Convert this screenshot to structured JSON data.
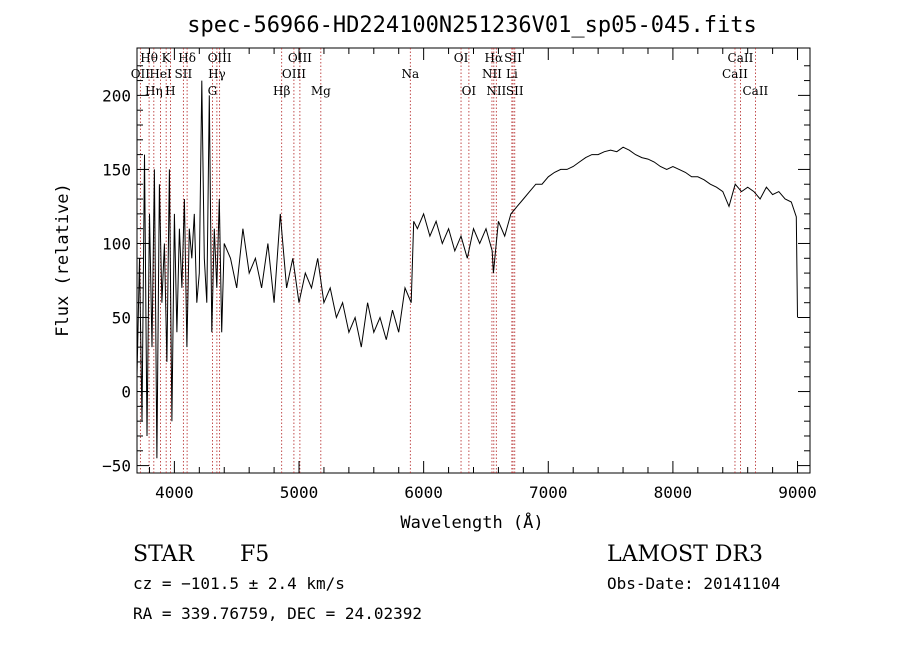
{
  "colors": {
    "spectrum": "#000000",
    "line_markers": "#b22222",
    "axes": "#000000",
    "background": "#ffffff"
  },
  "chart_data": {
    "type": "line",
    "title": "spec-56966-HD224100N251236V01_sp05-045.fits",
    "xlabel": "Wavelength (Å)",
    "ylabel": "Flux (relative)",
    "xlim": [
      3700,
      9100
    ],
    "ylim": [
      -55,
      232
    ],
    "x_ticks": [
      4000,
      5000,
      6000,
      7000,
      8000,
      9000
    ],
    "y_ticks": [
      -50,
      0,
      50,
      100,
      150,
      200
    ],
    "series": [
      {
        "values_description_free": true,
        "x": [
          3700,
          3720,
          3740,
          3760,
          3780,
          3800,
          3820,
          3840,
          3860,
          3880,
          3900,
          3920,
          3940,
          3960,
          3980,
          4000,
          4020,
          4040,
          4060,
          4080,
          4100,
          4120,
          4140,
          4160,
          4180,
          4200,
          4220,
          4240,
          4260,
          4280,
          4300,
          4320,
          4340,
          4360,
          4380,
          4400,
          4450,
          4500,
          4550,
          4600,
          4650,
          4700,
          4750,
          4800,
          4850,
          4900,
          4950,
          5000,
          5050,
          5100,
          5150,
          5200,
          5250,
          5300,
          5350,
          5400,
          5450,
          5500,
          5550,
          5600,
          5650,
          5700,
          5750,
          5800,
          5850,
          5900,
          5920,
          5950,
          6000,
          6050,
          6100,
          6150,
          6200,
          6250,
          6300,
          6350,
          6400,
          6450,
          6500,
          6550,
          6560,
          6600,
          6650,
          6700,
          6750,
          6800,
          6850,
          6900,
          6950,
          7000,
          7050,
          7100,
          7150,
          7200,
          7250,
          7300,
          7350,
          7400,
          7450,
          7500,
          7550,
          7600,
          7650,
          7700,
          7750,
          7800,
          7850,
          7900,
          7950,
          8000,
          8050,
          8100,
          8150,
          8200,
          8250,
          8300,
          8350,
          8400,
          8450,
          8500,
          8550,
          8600,
          8650,
          8700,
          8750,
          8800,
          8850,
          8900,
          8950,
          8990,
          9000
        ],
        "y": [
          10,
          90,
          -20,
          160,
          -30,
          120,
          30,
          150,
          -45,
          140,
          60,
          100,
          20,
          150,
          -20,
          120,
          40,
          110,
          70,
          130,
          30,
          110,
          90,
          120,
          60,
          80,
          210,
          90,
          60,
          200,
          40,
          110,
          70,
          130,
          40,
          100,
          90,
          70,
          110,
          80,
          90,
          70,
          100,
          60,
          120,
          70,
          90,
          60,
          80,
          70,
          90,
          60,
          70,
          50,
          60,
          40,
          50,
          30,
          60,
          40,
          50,
          35,
          55,
          40,
          70,
          60,
          115,
          110,
          120,
          105,
          115,
          100,
          110,
          95,
          105,
          90,
          110,
          100,
          110,
          95,
          80,
          115,
          105,
          120,
          125,
          130,
          135,
          140,
          140,
          145,
          148,
          150,
          150,
          152,
          155,
          158,
          160,
          160,
          162,
          163,
          162,
          165,
          163,
          160,
          158,
          157,
          155,
          152,
          150,
          152,
          150,
          148,
          145,
          145,
          143,
          140,
          138,
          135,
          125,
          140,
          135,
          138,
          135,
          130,
          138,
          133,
          135,
          130,
          128,
          118,
          50
        ]
      }
    ],
    "line_markers": [
      {
        "label": "Hθ",
        "x": 3797
      },
      {
        "label": "K",
        "x": 3934
      },
      {
        "label": "Hδ",
        "x": 4102
      },
      {
        "label": "OIII",
        "x": 4363
      },
      {
        "label": "OIII",
        "x": 5007
      },
      {
        "label": "OI",
        "x": 6300
      },
      {
        "label": "Hα",
        "x": 6563
      },
      {
        "label": "SII",
        "x": 6717
      },
      {
        "label": "CaII",
        "x": 8542
      },
      {
        "label": "OII",
        "x": 3727
      },
      {
        "label": "HeI",
        "x": 3889
      },
      {
        "label": "SII",
        "x": 4072
      },
      {
        "label": "Hγ",
        "x": 4341
      },
      {
        "label": "OIII",
        "x": 4959
      },
      {
        "label": "Na",
        "x": 5893
      },
      {
        "label": "NII",
        "x": 6548
      },
      {
        "label": "Li",
        "x": 6708
      },
      {
        "label": "CaII",
        "x": 8498
      },
      {
        "label": "Hη",
        "x": 3835
      },
      {
        "label": "H",
        "x": 3968
      },
      {
        "label": "G",
        "x": 4305
      },
      {
        "label": "Hβ",
        "x": 4861
      },
      {
        "label": "Mg",
        "x": 5175
      },
      {
        "label": "OI",
        "x": 6363
      },
      {
        "label": "NII",
        "x": 6583
      },
      {
        "label": "SII",
        "x": 6731
      },
      {
        "label": "CaII",
        "x": 8662
      }
    ]
  },
  "info": {
    "object_type": "STAR",
    "subclass": "F5",
    "survey": "LAMOST DR3",
    "redshift": "cz = −101.5 ± 2.4 km/s",
    "obs_date": "Obs-Date: 20141104",
    "coords": "RA = 339.76759, DEC =  24.02392"
  }
}
